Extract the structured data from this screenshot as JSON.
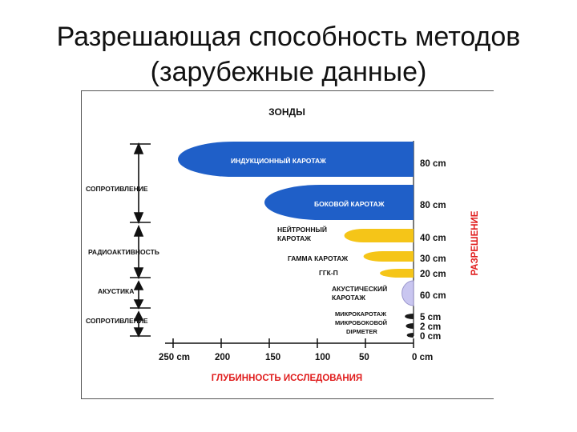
{
  "title": {
    "line1": "Разрешающая способность методов",
    "line2": "(зарубежные данные)"
  },
  "figure": {
    "header": "ЗОНДЫ",
    "right_axis_label": "РАЗРЕШЕНИЕ",
    "x_axis_title": "ГЛУБИННОСТЬ ИССЛЕДОВАНИЯ",
    "x_ticks": [
      "250 cm",
      "200",
      "150",
      "100",
      "50",
      "0 cm"
    ],
    "left_groups": [
      "СОПРОТИВЛЕНИЕ",
      "РАДИОАКТИВНОСТЬ",
      "АКУСТИКА",
      "СОПРОТИВЛЕНИЕ"
    ],
    "methods": [
      {
        "name": "ИНДУКЦИОННЫЙ КАРОТАЖ",
        "depth_cm": 245,
        "resolution": "80 cm",
        "color": "#1f5fc8"
      },
      {
        "name": "БОКОВОЙ КАРОТАЖ",
        "depth_cm": 155,
        "resolution": "80 cm",
        "color": "#1f5fc8"
      },
      {
        "name": "НЕЙТРОННЫЙ КАРОТАЖ",
        "depth_cm": 72,
        "resolution": "40 cm",
        "color": "#f5c518"
      },
      {
        "name": "ГАММА КАРОТАЖ",
        "depth_cm": 52,
        "resolution": "30 cm",
        "color": "#f5c518"
      },
      {
        "name": "ГГК-П",
        "depth_cm": 35,
        "resolution": "20 cm",
        "color": "#f5c518"
      },
      {
        "name": "АКУСТИЧЕСКИЙ КАРОТАЖ",
        "depth_cm": 12,
        "resolution": "60 cm",
        "color": "#c9c6f0"
      },
      {
        "name": "МИКРОКАРОТАЖ",
        "depth_cm": 9,
        "resolution": "5 cm",
        "color": "#1a1a1a"
      },
      {
        "name": "МИКРОБОКОВОЙ",
        "depth_cm": 8,
        "resolution": "2 cm",
        "color": "#1a1a1a"
      },
      {
        "name": "DIPMETER",
        "depth_cm": 7,
        "resolution": "0 cm",
        "color": "#1a1a1a"
      }
    ],
    "colors": {
      "red": "#e01c1c",
      "blue": "#1f5fc8",
      "yellow": "#f5c518",
      "lilac": "#c9c6f0"
    }
  }
}
